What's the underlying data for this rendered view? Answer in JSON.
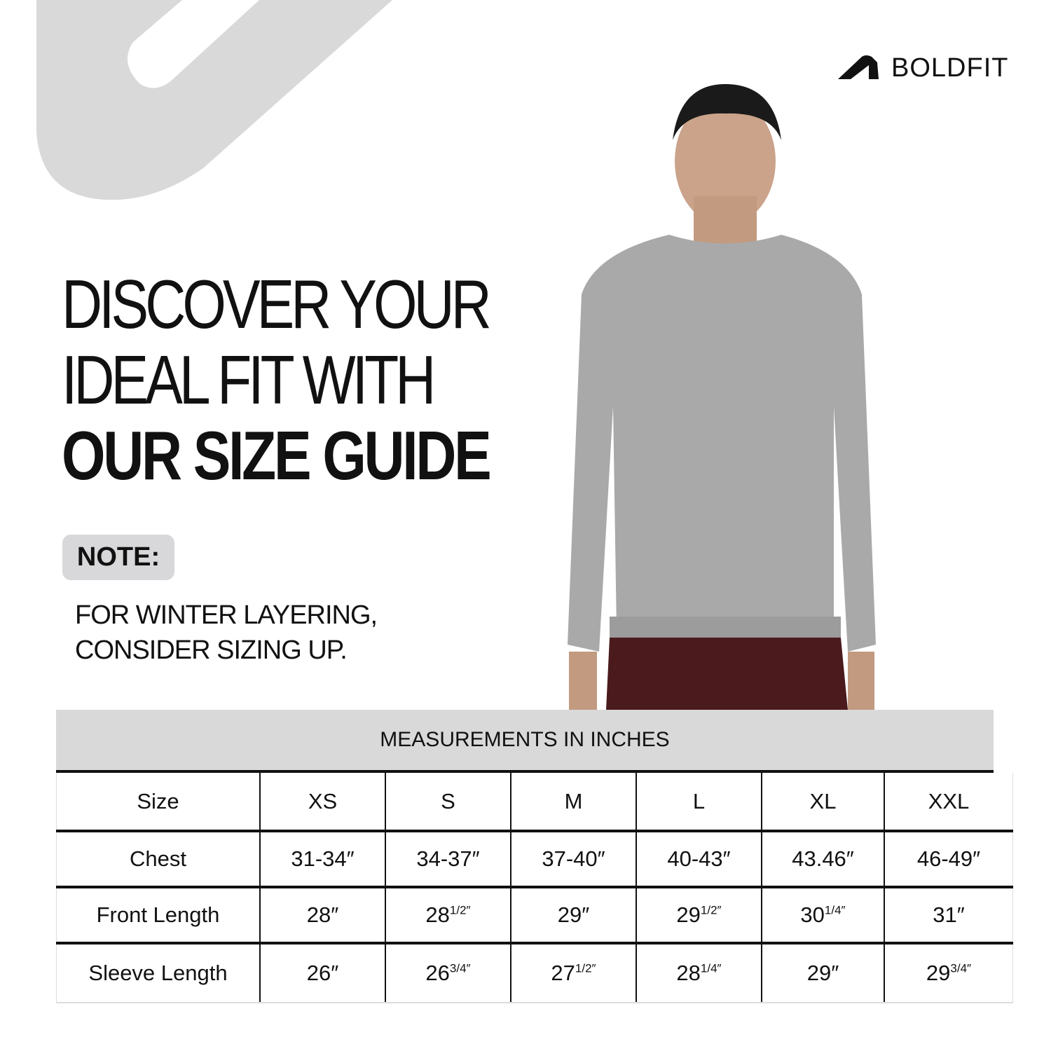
{
  "brand": {
    "logo_text": "BOLDFIT"
  },
  "headline": {
    "line1": "DISCOVER YOUR",
    "line2": "IDEAL FIT WITH",
    "line3": "OUR SIZE GUIDE"
  },
  "note": {
    "label": "NOTE:",
    "line1": "FOR WINTER LAYERING,",
    "line2": "CONSIDER SIZING UP."
  },
  "colors": {
    "deco_grey": "#d9d9d9",
    "sweater": "#a9a9a9",
    "shorts": "#4a1a1c",
    "table_header": "#d9d9d9"
  },
  "table": {
    "title": "MEASUREMENTS IN INCHES",
    "rows": [
      {
        "label": "Size",
        "cells": [
          {
            "v": "XS"
          },
          {
            "v": "S"
          },
          {
            "v": "M"
          },
          {
            "v": "L"
          },
          {
            "v": "XL"
          },
          {
            "v": "XXL"
          }
        ]
      },
      {
        "label": "Chest",
        "cells": [
          {
            "v": "31-34″"
          },
          {
            "v": "34-37″"
          },
          {
            "v": "37-40″"
          },
          {
            "v": "40-43″"
          },
          {
            "v": "43.46″"
          },
          {
            "v": "46-49″"
          }
        ]
      },
      {
        "label": "Front Length",
        "cells": [
          {
            "v": "28″"
          },
          {
            "v": "28",
            "f": "1/2″"
          },
          {
            "v": "29″"
          },
          {
            "v": "29",
            "f": "1/2″"
          },
          {
            "v": "30",
            "f": "1/4″"
          },
          {
            "v": "31″"
          }
        ]
      },
      {
        "label": "Sleeve Length",
        "cells": [
          {
            "v": "26″"
          },
          {
            "v": "26",
            "f": "3/4″"
          },
          {
            "v": "27",
            "f": "1/2″"
          },
          {
            "v": "28",
            "f": "1/4″"
          },
          {
            "v": "29″"
          },
          {
            "v": "29",
            "f": "3/4″"
          }
        ]
      }
    ]
  }
}
